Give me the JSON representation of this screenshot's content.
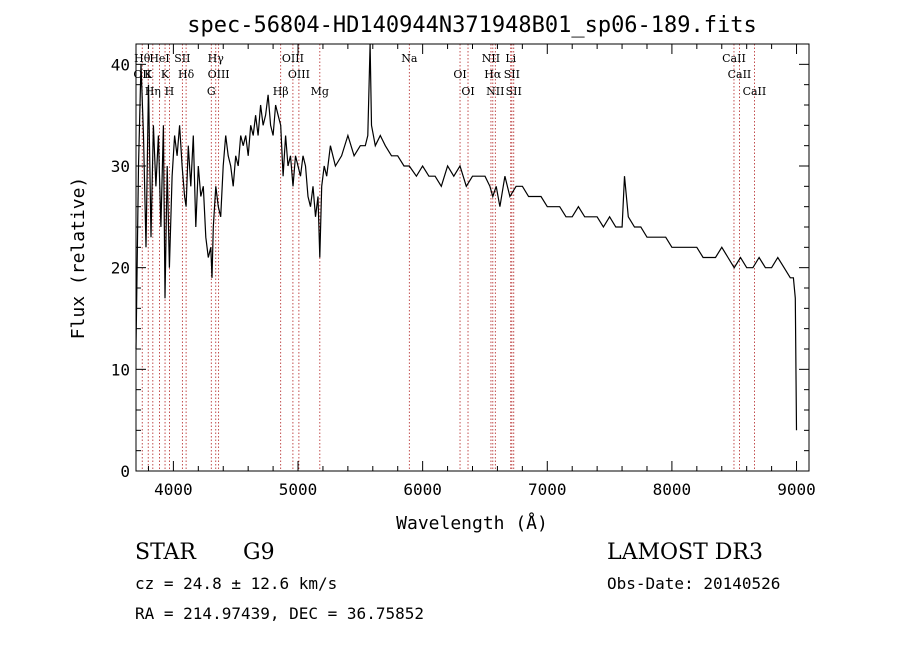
{
  "chart_data": {
    "type": "line",
    "title": "spec-56804-HD140944N371948B01_sp06-189.fits",
    "xlabel": "Wavelength (Å)",
    "ylabel": "Flux (relative)",
    "xlim": [
      3700,
      9100
    ],
    "ylim": [
      0,
      42
    ],
    "x_ticks": [
      4000,
      5000,
      6000,
      7000,
      8000,
      9000
    ],
    "y_ticks": [
      0,
      10,
      20,
      30,
      40
    ],
    "grid": false,
    "legend": "none",
    "line_color": "#000000",
    "marker_color": "#b22222",
    "series": [
      {
        "x": [
          3700,
          3720,
          3740,
          3760,
          3780,
          3800,
          3820,
          3840,
          3860,
          3880,
          3900,
          3920,
          3933,
          3950,
          3968,
          3990,
          4010,
          4030,
          4050,
          4070,
          4090,
          4102,
          4120,
          4140,
          4160,
          4180,
          4200,
          4220,
          4240,
          4260,
          4280,
          4300,
          4310,
          4320,
          4340,
          4360,
          4380,
          4400,
          4420,
          4440,
          4460,
          4480,
          4500,
          4520,
          4540,
          4560,
          4580,
          4600,
          4620,
          4640,
          4660,
          4680,
          4700,
          4720,
          4740,
          4760,
          4780,
          4800,
          4820,
          4840,
          4861,
          4880,
          4900,
          4920,
          4940,
          4960,
          4980,
          5000,
          5020,
          5040,
          5060,
          5080,
          5100,
          5120,
          5140,
          5160,
          5175,
          5190,
          5210,
          5230,
          5260,
          5300,
          5350,
          5400,
          5450,
          5500,
          5540,
          5560,
          5578,
          5590,
          5620,
          5660,
          5700,
          5750,
          5800,
          5850,
          5893,
          5950,
          6000,
          6050,
          6100,
          6150,
          6200,
          6250,
          6300,
          6350,
          6400,
          6450,
          6500,
          6540,
          6563,
          6590,
          6620,
          6660,
          6700,
          6750,
          6800,
          6850,
          6900,
          6950,
          7000,
          7050,
          7100,
          7150,
          7200,
          7250,
          7300,
          7350,
          7400,
          7450,
          7500,
          7550,
          7600,
          7620,
          7650,
          7700,
          7750,
          7800,
          7850,
          7900,
          7950,
          8000,
          8050,
          8100,
          8150,
          8200,
          8250,
          8300,
          8350,
          8400,
          8450,
          8500,
          8550,
          8600,
          8650,
          8700,
          8750,
          8800,
          8850,
          8900,
          8950,
          8975,
          8990,
          9000
        ],
        "y": [
          12,
          30,
          40,
          33,
          22,
          38,
          23,
          34,
          28,
          33,
          24,
          34,
          17,
          30,
          20,
          29,
          33,
          31,
          34,
          30,
          27,
          26,
          32,
          28,
          33,
          24,
          30,
          27,
          28,
          23,
          21,
          22,
          19,
          24,
          28,
          26,
          25,
          30,
          33,
          31,
          30,
          28,
          31,
          30,
          33,
          32,
          33,
          31,
          34,
          33,
          35,
          33,
          36,
          34,
          35,
          37,
          34,
          33,
          36,
          35,
          34,
          29,
          33,
          30,
          31,
          28,
          31,
          30,
          29,
          31,
          30,
          27,
          26,
          28,
          25,
          27,
          21,
          28,
          30,
          29,
          32,
          30,
          31,
          33,
          31,
          32,
          32,
          33,
          42,
          34,
          32,
          33,
          32,
          31,
          31,
          30,
          30,
          29,
          30,
          29,
          29,
          28,
          30,
          29,
          30,
          28,
          29,
          29,
          29,
          28,
          27,
          28,
          26,
          29,
          27,
          28,
          28,
          27,
          27,
          27,
          26,
          26,
          26,
          25,
          25,
          26,
          25,
          25,
          25,
          24,
          25,
          24,
          24,
          29,
          25,
          24,
          24,
          23,
          23,
          23,
          23,
          22,
          22,
          22,
          22,
          22,
          21,
          21,
          21,
          22,
          21,
          20,
          21,
          20,
          20,
          21,
          20,
          20,
          21,
          20,
          19,
          19,
          17,
          4
        ]
      }
    ],
    "line_markers": [
      {
        "wl": 3750,
        "labels": [
          "Hθ",
          "OII"
        ]
      },
      {
        "wl": 3798,
        "labels": [
          "K"
        ]
      },
      {
        "wl": 3835,
        "labels": [
          "Hη"
        ]
      },
      {
        "wl": 3889,
        "labels": [
          "HeI"
        ]
      },
      {
        "wl": 3933,
        "labels": [
          "K"
        ]
      },
      {
        "wl": 3968,
        "labels": [
          "H"
        ]
      },
      {
        "wl": 4072,
        "labels": [
          "SII"
        ]
      },
      {
        "wl": 4102,
        "labels": [
          "Hδ"
        ]
      },
      {
        "wl": 4304,
        "labels": [
          "G"
        ]
      },
      {
        "wl": 4340,
        "labels": [
          "Hγ"
        ]
      },
      {
        "wl": 4363,
        "labels": [
          "OIII"
        ]
      },
      {
        "wl": 4861,
        "labels": [
          "Hβ"
        ]
      },
      {
        "wl": 4959,
        "labels": [
          "OIII"
        ]
      },
      {
        "wl": 5007,
        "labels": [
          "OIII"
        ]
      },
      {
        "wl": 5175,
        "labels": [
          "Mg"
        ]
      },
      {
        "wl": 5893,
        "labels": [
          "Na"
        ]
      },
      {
        "wl": 6300,
        "labels": [
          "OI"
        ]
      },
      {
        "wl": 6364,
        "labels": [
          "OI"
        ]
      },
      {
        "wl": 6548,
        "labels": [
          "NII"
        ]
      },
      {
        "wl": 6563,
        "labels": [
          "Hα"
        ]
      },
      {
        "wl": 6583,
        "labels": [
          "NII"
        ]
      },
      {
        "wl": 6707,
        "labels": [
          "Li"
        ]
      },
      {
        "wl": 6716,
        "labels": [
          "SII"
        ]
      },
      {
        "wl": 6731,
        "labels": [
          "SII"
        ]
      },
      {
        "wl": 8498,
        "labels": [
          "CaII"
        ]
      },
      {
        "wl": 8542,
        "labels": [
          "CaII"
        ]
      },
      {
        "wl": 8662,
        "labels": [
          "CaII"
        ]
      }
    ]
  },
  "info": {
    "object_class": "STAR",
    "subclass": "G9",
    "survey": "LAMOST DR3",
    "cz": "cz = 24.8 ± 12.6 km/s",
    "obs_date": "Obs-Date: 20140526",
    "coords": "RA = 214.97439, DEC =  36.75852"
  }
}
